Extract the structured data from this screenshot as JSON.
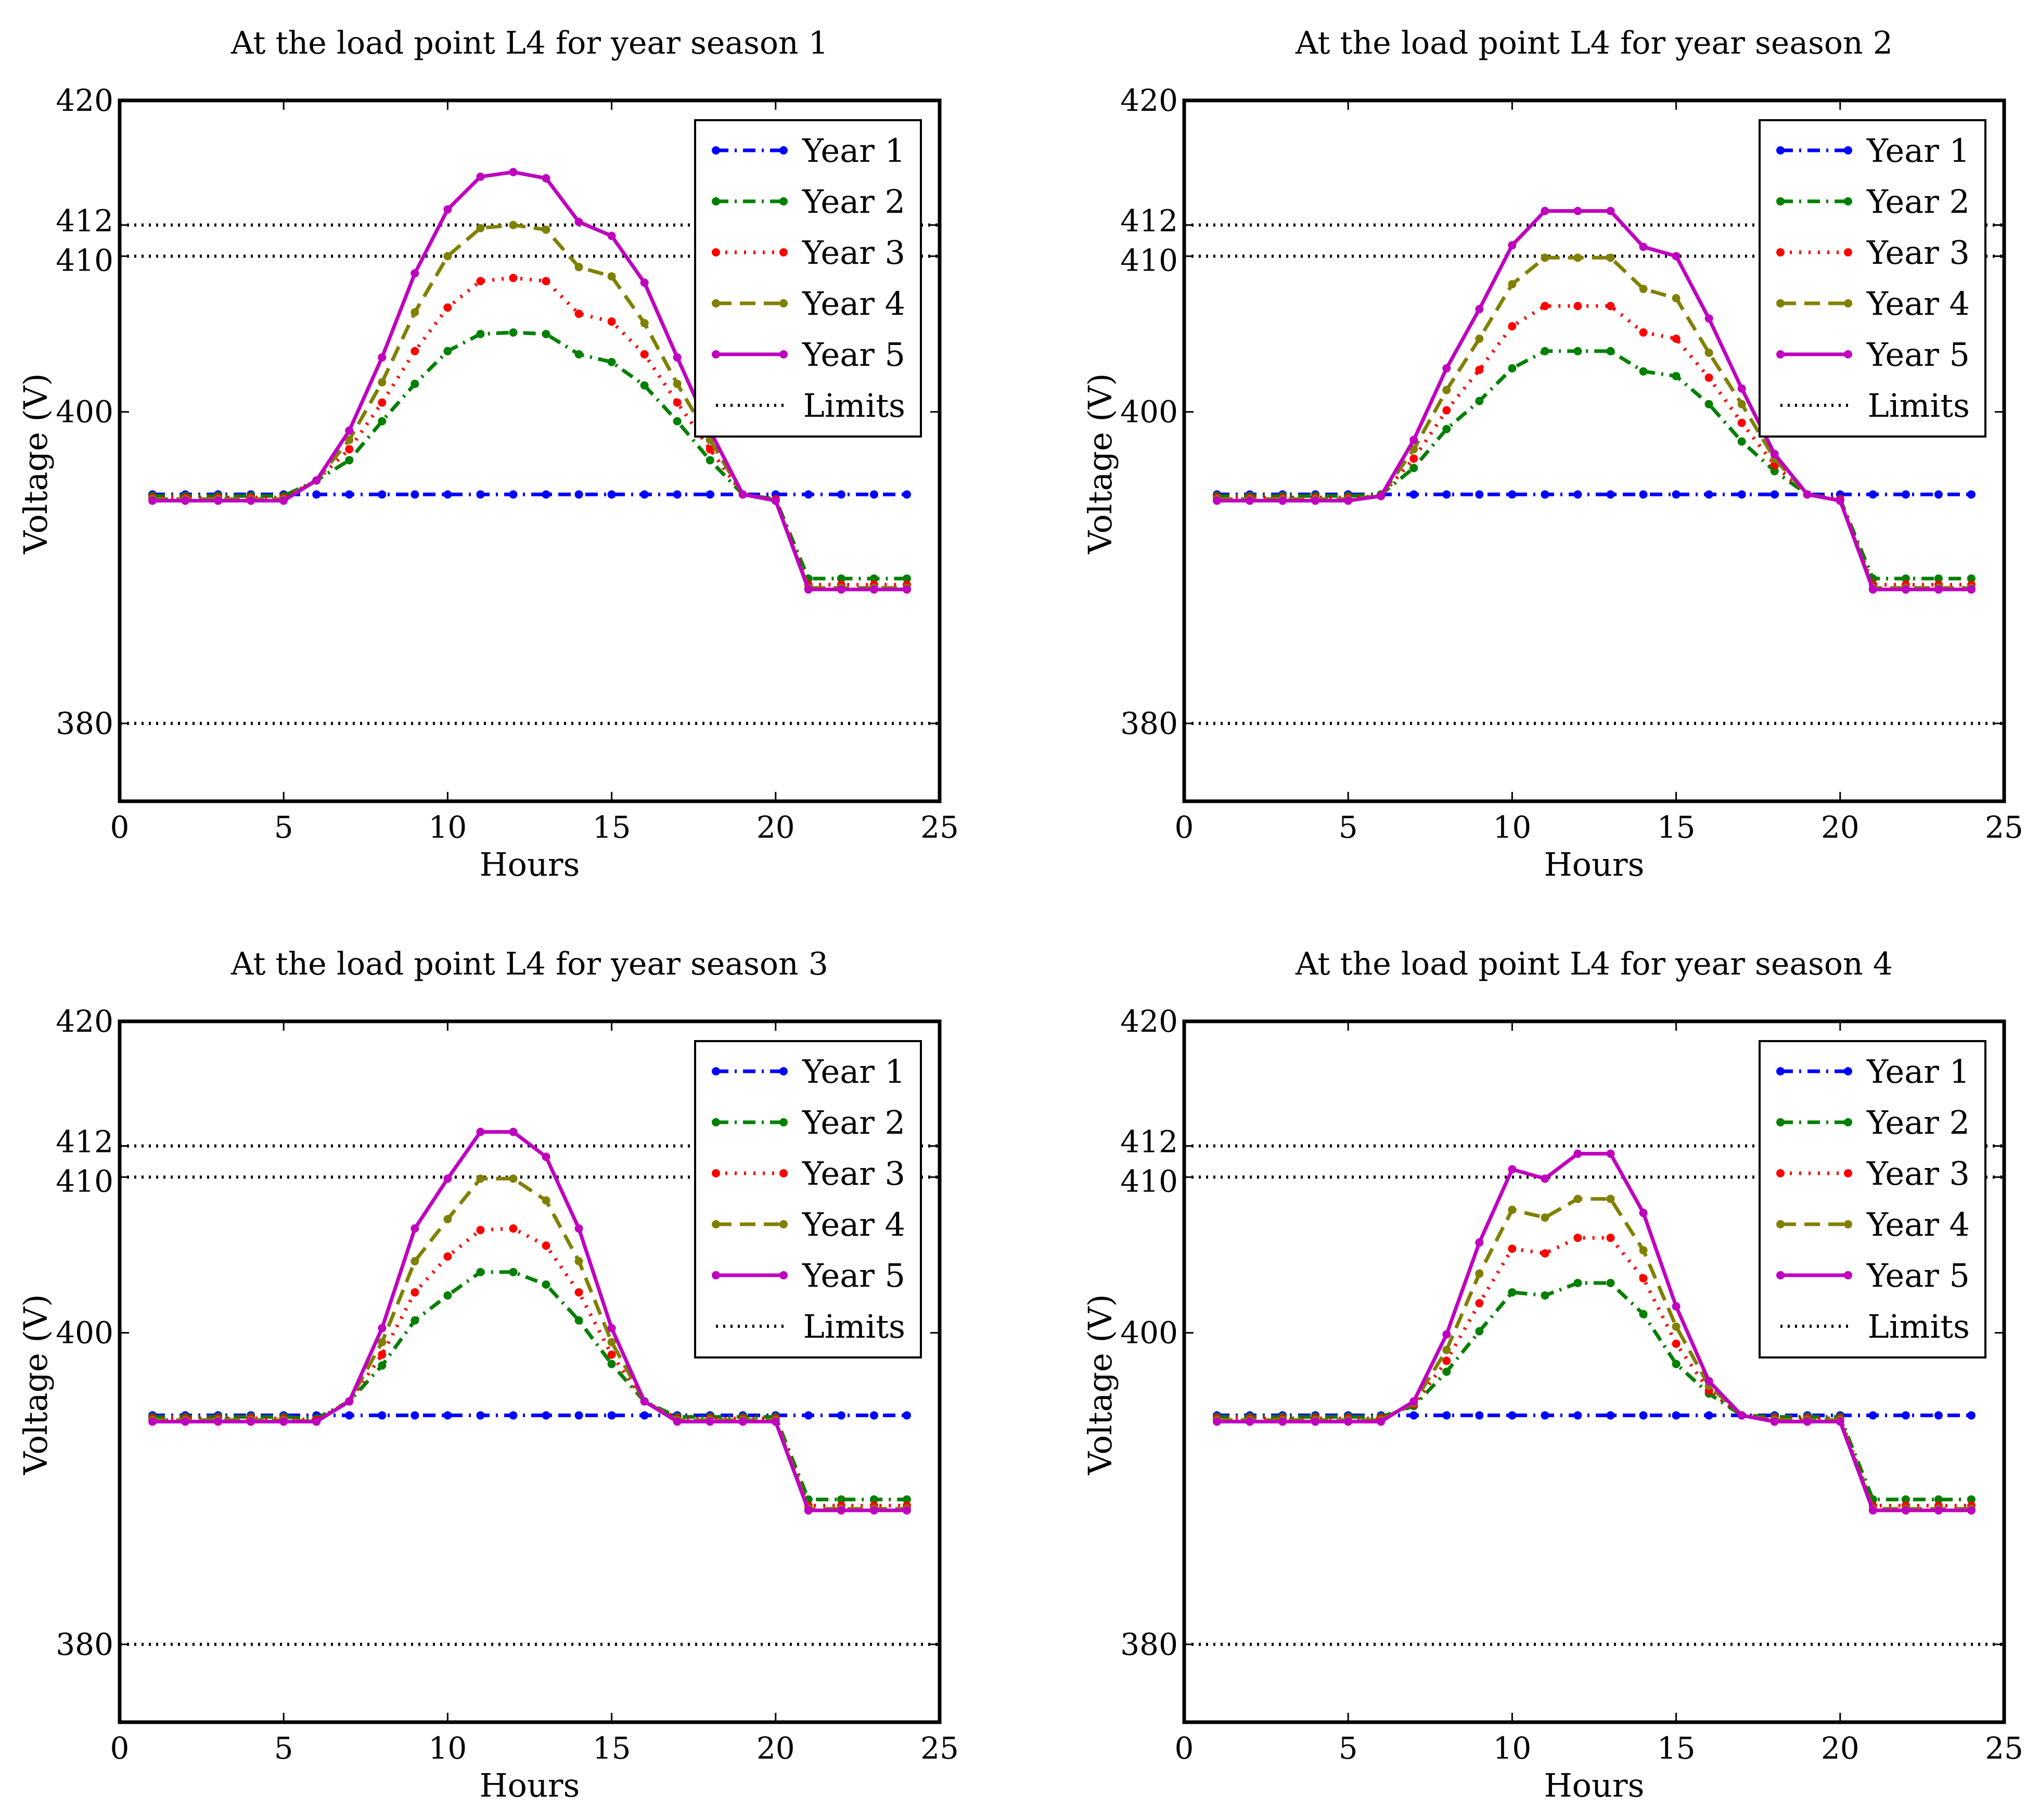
{
  "chart_data": [
    {
      "type": "line",
      "title": "At the load point L4 for year season 1",
      "xlabel": "Hours",
      "ylabel": "Voltage (V)",
      "xlim": [
        0,
        25
      ],
      "ylim": [
        375,
        420
      ],
      "xticks": [
        0,
        5,
        10,
        15,
        20,
        25
      ],
      "yticks": [
        380,
        400,
        410,
        412,
        420
      ],
      "legend_position": "top-right",
      "limits": [
        380,
        410,
        412
      ],
      "x": [
        1,
        2,
        3,
        4,
        5,
        6,
        7,
        8,
        9,
        10,
        11,
        12,
        13,
        14,
        15,
        16,
        17,
        18,
        19,
        20,
        21,
        22,
        23,
        24
      ],
      "series": [
        {
          "name": "Year 1",
          "color": "#0000ff",
          "style": "dashdot",
          "values": [
            394.7,
            394.7,
            394.7,
            394.7,
            394.7,
            394.7,
            394.7,
            394.7,
            394.7,
            394.7,
            394.7,
            394.7,
            394.7,
            394.7,
            394.7,
            394.7,
            394.7,
            394.7,
            394.7,
            394.7,
            394.7,
            394.7,
            394.7,
            394.7
          ]
        },
        {
          "name": "Year 2",
          "color": "#008000",
          "style": "dashdot",
          "values": [
            394.6,
            394.6,
            394.6,
            394.6,
            394.6,
            395.6,
            396.9,
            399.4,
            401.8,
            403.9,
            405.0,
            405.1,
            405.0,
            403.7,
            403.2,
            401.7,
            399.4,
            396.9,
            394.7,
            394.4,
            389.3,
            389.3,
            389.3,
            389.3
          ]
        },
        {
          "name": "Year 3",
          "color": "#ff0000",
          "style": "dotted",
          "values": [
            394.5,
            394.5,
            394.5,
            394.5,
            394.5,
            395.6,
            397.6,
            400.6,
            403.9,
            406.7,
            408.4,
            408.6,
            408.4,
            406.3,
            405.8,
            403.7,
            400.6,
            397.6,
            394.7,
            394.4,
            388.9,
            388.9,
            388.9,
            388.9
          ]
        },
        {
          "name": "Year 4",
          "color": "#808000",
          "style": "dashed",
          "values": [
            394.4,
            394.4,
            394.4,
            394.4,
            394.4,
            395.6,
            398.2,
            401.9,
            406.4,
            410.0,
            411.8,
            412.0,
            411.7,
            409.3,
            408.7,
            405.7,
            401.8,
            398.2,
            394.7,
            394.3,
            388.7,
            388.7,
            388.7,
            388.7
          ]
        },
        {
          "name": "Year 5",
          "color": "#bf00bf",
          "style": "solid",
          "values": [
            394.3,
            394.3,
            394.3,
            394.3,
            394.3,
            395.6,
            398.8,
            403.5,
            408.9,
            413.0,
            415.1,
            415.4,
            415.0,
            412.2,
            411.3,
            408.3,
            403.5,
            398.8,
            394.7,
            394.3,
            388.6,
            388.6,
            388.6,
            388.6
          ]
        }
      ]
    },
    {
      "type": "line",
      "title": "At the load point L4 for year season 2",
      "xlabel": "Hours",
      "ylabel": "Voltage (V)",
      "xlim": [
        0,
        25
      ],
      "ylim": [
        375,
        420
      ],
      "xticks": [
        0,
        5,
        10,
        15,
        20,
        25
      ],
      "yticks": [
        380,
        400,
        410,
        412,
        420
      ],
      "legend_position": "top-right",
      "limits": [
        380,
        410,
        412
      ],
      "x": [
        1,
        2,
        3,
        4,
        5,
        6,
        7,
        8,
        9,
        10,
        11,
        12,
        13,
        14,
        15,
        16,
        17,
        18,
        19,
        20,
        21,
        22,
        23,
        24
      ],
      "series": [
        {
          "name": "Year 1",
          "color": "#0000ff",
          "style": "dashdot",
          "values": [
            394.7,
            394.7,
            394.7,
            394.7,
            394.7,
            394.7,
            394.7,
            394.7,
            394.7,
            394.7,
            394.7,
            394.7,
            394.7,
            394.7,
            394.7,
            394.7,
            394.7,
            394.7,
            394.7,
            394.7,
            394.7,
            394.7,
            394.7,
            394.7
          ]
        },
        {
          "name": "Year 2",
          "color": "#008000",
          "style": "dashdot",
          "values": [
            394.6,
            394.6,
            394.6,
            394.6,
            394.6,
            394.7,
            396.4,
            398.9,
            400.7,
            402.8,
            403.9,
            403.9,
            403.9,
            402.6,
            402.3,
            400.5,
            398.1,
            396.2,
            394.7,
            394.4,
            389.3,
            389.3,
            389.3,
            389.3
          ]
        },
        {
          "name": "Year 3",
          "color": "#ff0000",
          "style": "dotted",
          "values": [
            394.5,
            394.5,
            394.5,
            394.5,
            394.5,
            394.6,
            397.0,
            400.1,
            402.7,
            405.5,
            406.8,
            406.8,
            406.8,
            405.1,
            404.7,
            402.2,
            399.3,
            396.6,
            394.7,
            394.4,
            388.9,
            388.9,
            388.9,
            388.9
          ]
        },
        {
          "name": "Year 4",
          "color": "#808000",
          "style": "dashed",
          "values": [
            394.4,
            394.4,
            394.4,
            394.4,
            394.4,
            394.6,
            397.6,
            401.4,
            404.7,
            408.2,
            409.9,
            409.9,
            409.9,
            407.9,
            407.3,
            403.8,
            400.5,
            397.0,
            394.7,
            394.3,
            388.7,
            388.7,
            388.7,
            388.7
          ]
        },
        {
          "name": "Year 5",
          "color": "#bf00bf",
          "style": "solid",
          "values": [
            394.3,
            394.3,
            394.3,
            394.3,
            394.3,
            394.6,
            398.2,
            402.8,
            406.6,
            410.7,
            412.9,
            412.9,
            412.9,
            410.6,
            410.0,
            406.0,
            401.5,
            397.3,
            394.7,
            394.3,
            388.6,
            388.6,
            388.6,
            388.6
          ]
        }
      ]
    },
    {
      "type": "line",
      "title": "At the load point L4 for year season 3",
      "xlabel": "Hours",
      "ylabel": "Voltage (V)",
      "xlim": [
        0,
        25
      ],
      "ylim": [
        375,
        420
      ],
      "xticks": [
        0,
        5,
        10,
        15,
        20,
        25
      ],
      "yticks": [
        380,
        400,
        410,
        412,
        420
      ],
      "legend_position": "top-right",
      "limits": [
        380,
        410,
        412
      ],
      "x": [
        1,
        2,
        3,
        4,
        5,
        6,
        7,
        8,
        9,
        10,
        11,
        12,
        13,
        14,
        15,
        16,
        17,
        18,
        19,
        20,
        21,
        22,
        23,
        24
      ],
      "series": [
        {
          "name": "Year 1",
          "color": "#0000ff",
          "style": "dashdot",
          "values": [
            394.7,
            394.7,
            394.7,
            394.7,
            394.7,
            394.7,
            394.7,
            394.7,
            394.7,
            394.7,
            394.7,
            394.7,
            394.7,
            394.7,
            394.7,
            394.7,
            394.7,
            394.7,
            394.7,
            394.7,
            394.7,
            394.7,
            394.7,
            394.7
          ]
        },
        {
          "name": "Year 2",
          "color": "#008000",
          "style": "dashdot",
          "values": [
            394.6,
            394.6,
            394.6,
            394.6,
            394.6,
            394.5,
            395.6,
            397.9,
            400.8,
            402.4,
            403.9,
            403.9,
            403.1,
            400.8,
            398.0,
            395.6,
            394.6,
            394.6,
            394.6,
            394.6,
            389.3,
            389.3,
            389.3,
            389.3
          ]
        },
        {
          "name": "Year 3",
          "color": "#ff0000",
          "style": "dotted",
          "values": [
            394.5,
            394.5,
            394.5,
            394.5,
            394.5,
            394.4,
            395.6,
            398.6,
            402.6,
            404.9,
            406.6,
            406.7,
            405.6,
            402.6,
            398.6,
            395.6,
            394.5,
            394.5,
            394.5,
            394.5,
            388.9,
            388.9,
            388.9,
            388.9
          ]
        },
        {
          "name": "Year 4",
          "color": "#808000",
          "style": "dashed",
          "values": [
            394.4,
            394.4,
            394.4,
            394.4,
            394.4,
            394.3,
            395.6,
            399.4,
            404.6,
            407.3,
            409.9,
            409.9,
            408.5,
            404.6,
            399.4,
            395.6,
            394.4,
            394.4,
            394.4,
            394.4,
            388.7,
            388.7,
            388.7,
            388.7
          ]
        },
        {
          "name": "Year 5",
          "color": "#bf00bf",
          "style": "solid",
          "values": [
            394.3,
            394.3,
            394.3,
            394.3,
            394.3,
            394.3,
            395.6,
            400.3,
            406.7,
            409.9,
            412.9,
            412.9,
            411.3,
            406.7,
            400.3,
            395.6,
            394.3,
            394.3,
            394.3,
            394.3,
            388.6,
            388.6,
            388.6,
            388.6
          ]
        }
      ]
    },
    {
      "type": "line",
      "title": "At the load point L4 for year season 4",
      "xlabel": "Hours",
      "ylabel": "Voltage (V)",
      "xlim": [
        0,
        25
      ],
      "ylim": [
        375,
        420
      ],
      "xticks": [
        0,
        5,
        10,
        15,
        20,
        25
      ],
      "yticks": [
        380,
        400,
        410,
        412,
        420
      ],
      "legend_position": "top-right",
      "limits": [
        380,
        410,
        412
      ],
      "x": [
        1,
        2,
        3,
        4,
        5,
        6,
        7,
        8,
        9,
        10,
        11,
        12,
        13,
        14,
        15,
        16,
        17,
        18,
        19,
        20,
        21,
        22,
        23,
        24
      ],
      "series": [
        {
          "name": "Year 1",
          "color": "#0000ff",
          "style": "dashdot",
          "values": [
            394.7,
            394.7,
            394.7,
            394.7,
            394.7,
            394.7,
            394.7,
            394.7,
            394.7,
            394.7,
            394.7,
            394.7,
            394.7,
            394.7,
            394.7,
            394.7,
            394.7,
            394.7,
            394.7,
            394.7,
            394.7,
            394.7,
            394.7,
            394.7
          ]
        },
        {
          "name": "Year 2",
          "color": "#008000",
          "style": "dashdot",
          "values": [
            394.6,
            394.6,
            394.6,
            394.6,
            394.6,
            394.6,
            395.3,
            397.5,
            400.1,
            402.6,
            402.4,
            403.2,
            403.2,
            401.2,
            398.0,
            396.1,
            394.7,
            394.6,
            394.6,
            394.6,
            389.3,
            389.3,
            389.3,
            389.3
          ]
        },
        {
          "name": "Year 3",
          "color": "#ff0000",
          "style": "dotted",
          "values": [
            394.5,
            394.5,
            394.5,
            394.5,
            394.5,
            394.5,
            395.4,
            398.2,
            401.9,
            405.4,
            405.1,
            406.1,
            406.1,
            403.5,
            399.3,
            396.3,
            394.7,
            394.5,
            394.5,
            394.5,
            388.9,
            388.9,
            388.9,
            388.9
          ]
        },
        {
          "name": "Year 4",
          "color": "#808000",
          "style": "dashed",
          "values": [
            394.4,
            394.4,
            394.4,
            394.4,
            394.4,
            394.4,
            395.5,
            398.9,
            403.8,
            407.9,
            407.4,
            408.6,
            408.6,
            405.3,
            400.4,
            396.6,
            394.7,
            394.4,
            394.4,
            394.4,
            388.7,
            388.7,
            388.7,
            388.7
          ]
        },
        {
          "name": "Year 5",
          "color": "#bf00bf",
          "style": "solid",
          "values": [
            394.3,
            394.3,
            394.3,
            394.3,
            394.3,
            394.3,
            395.6,
            399.9,
            405.8,
            410.5,
            409.9,
            411.5,
            411.5,
            407.7,
            401.7,
            396.9,
            394.7,
            394.3,
            394.3,
            394.3,
            388.6,
            388.6,
            388.6,
            388.6
          ]
        }
      ]
    }
  ],
  "legend": {
    "entries": [
      "Year 1",
      "Year 2",
      "Year 3",
      "Year 4",
      "Year 5",
      "Limits"
    ],
    "limits_label": "Limits"
  }
}
